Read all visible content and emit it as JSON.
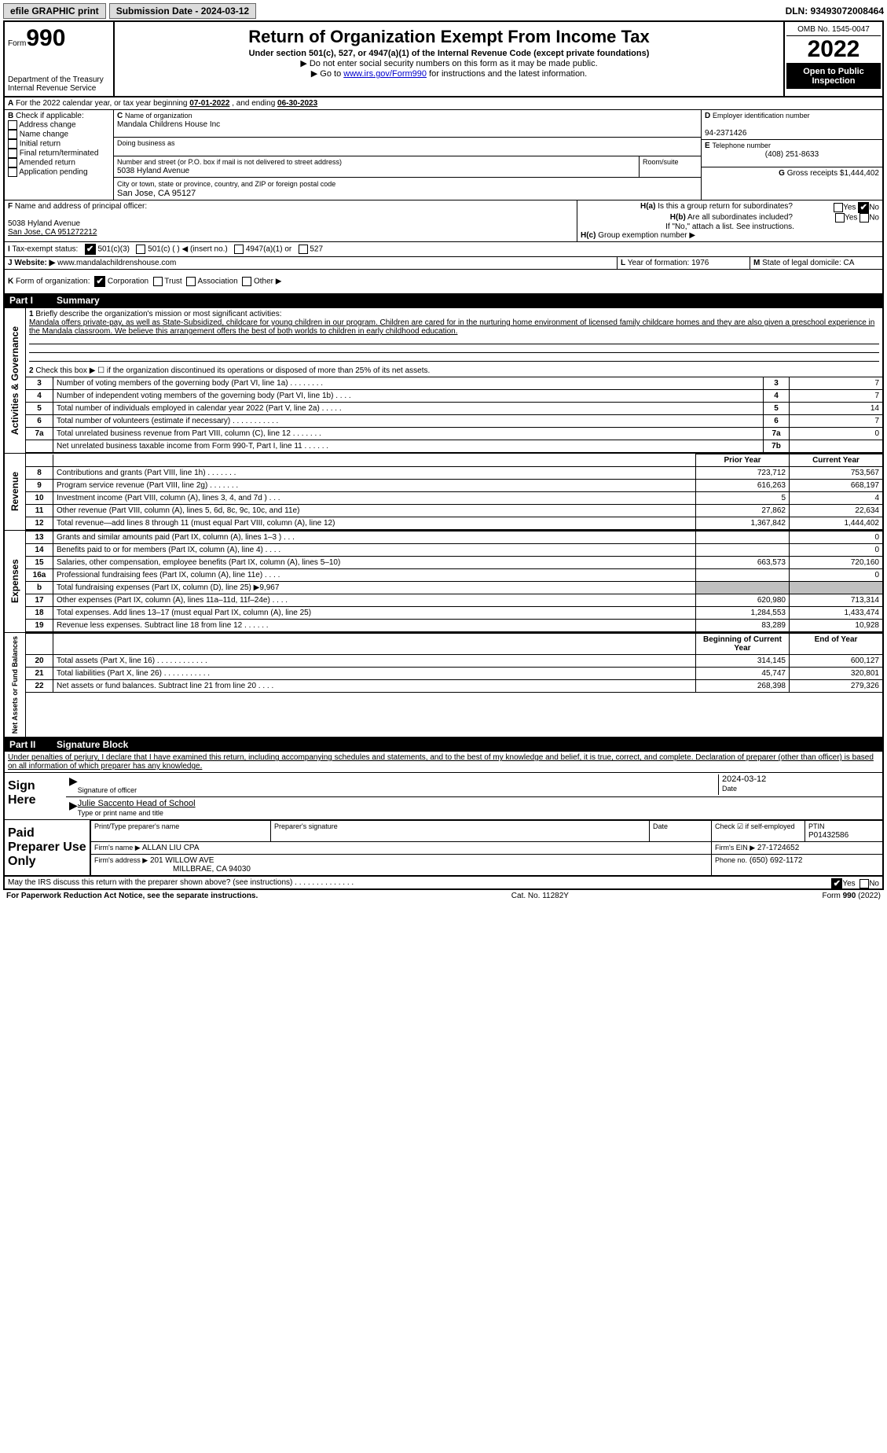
{
  "top": {
    "efile_label": "efile GRAPHIC print",
    "submission_label": "Submission Date - 2024-03-12",
    "dln_label": "DLN: 93493072008464"
  },
  "header": {
    "form_word": "Form",
    "form_num": "990",
    "dept": "Department of the Treasury\nInternal Revenue Service",
    "title": "Return of Organization Exempt From Income Tax",
    "subtitle": "Under section 501(c), 527, or 4947(a)(1) of the Internal Revenue Code (except private foundations)",
    "note1": "▶ Do not enter social security numbers on this form as it may be made public.",
    "note2_pre": "▶ Go to ",
    "note2_link": "www.irs.gov/Form990",
    "note2_post": " for instructions and the latest information.",
    "omb": "OMB No. 1545-0047",
    "year": "2022",
    "openpub": "Open to Public Inspection"
  },
  "A": {
    "text_pre": "For the 2022 calendar year, or tax year beginning ",
    "begin": "07-01-2022",
    "mid": " , and ending ",
    "end": "06-30-2023"
  },
  "B": {
    "label": "Check if applicable:",
    "items": [
      "Address change",
      "Name change",
      "Initial return",
      "Final return/terminated",
      "Amended return",
      "Application pending"
    ]
  },
  "C": {
    "name_label": "Name of organization",
    "name": "Mandala Childrens House Inc",
    "dba_label": "Doing business as",
    "street_label": "Number and street (or P.O. box if mail is not delivered to street address)",
    "room_label": "Room/suite",
    "street": "5038 Hyland Avenue",
    "city_label": "City or town, state or province, country, and ZIP or foreign postal code",
    "city": "San Jose, CA  95127"
  },
  "D": {
    "label": "Employer identification number",
    "value": "94-2371426"
  },
  "E": {
    "label": "Telephone number",
    "value": "(408) 251-8633"
  },
  "G": {
    "label": "Gross receipts $",
    "value": "1,444,402"
  },
  "F": {
    "label": "Name and address of principal officer:",
    "line1": "5038 Hyland Avenue",
    "line2": "San Jose, CA  951272212"
  },
  "H": {
    "a": "Is this a group return for subordinates?",
    "b": "Are all subordinates included?",
    "b_note": "If \"No,\" attach a list. See instructions.",
    "c": "Group exemption number ▶",
    "yes": "Yes",
    "no": "No"
  },
  "I": {
    "label": "Tax-exempt status:",
    "a": "501(c)(3)",
    "b": "501(c) (   ) ◀ (insert no.)",
    "c": "4947(a)(1) or",
    "d": "527"
  },
  "J": {
    "label": "Website: ▶",
    "value": "www.mandalachildrenshouse.com"
  },
  "K": {
    "label": "Form of organization:",
    "opts": [
      "Corporation",
      "Trust",
      "Association",
      "Other ▶"
    ]
  },
  "L": {
    "label": "Year of formation:",
    "value": "1976"
  },
  "M": {
    "label": "State of legal domicile:",
    "value": "CA"
  },
  "part1": {
    "title": "Summary",
    "q1": "Briefly describe the organization's mission or most significant activities:",
    "mission": "Mandala offers private-pay, as well as State-Subsidized, childcare for young children in our program. Children are cared for in the nurturing home environment of licensed family childcare homes and they are also given a preschool experience in the Mandala classroom. We believe this arrangement offers the best of both worlds to children in early childhood education.",
    "q2": "Check this box ▶ ☐  if the organization discontinued its operations or disposed of more than 25% of its net assets.",
    "rows_gov": [
      {
        "n": "3",
        "t": "Number of voting members of the governing body (Part VI, line 1a)   .    .    .    .    .    .    .    .",
        "box": "3",
        "v": "7"
      },
      {
        "n": "4",
        "t": "Number of independent voting members of the governing body (Part VI, line 1b)    .    .    .    .",
        "box": "4",
        "v": "7"
      },
      {
        "n": "5",
        "t": "Total number of individuals employed in calendar year 2022 (Part V, line 2a)   .    .    .    .    .",
        "box": "5",
        "v": "14"
      },
      {
        "n": "6",
        "t": "Total number of volunteers (estimate if necessary)    .    .    .    .    .    .    .    .    .    .    .",
        "box": "6",
        "v": "7"
      },
      {
        "n": "7a",
        "t": "Total unrelated business revenue from Part VIII, column (C), line 12    .    .    .    .    .    .    .",
        "box": "7a",
        "v": "0"
      },
      {
        "n": "",
        "t": "Net unrelated business taxable income from Form 990-T, Part I, line 11    .    .    .    .    .    .",
        "box": "7b",
        "v": ""
      }
    ],
    "hdr_prior": "Prior Year",
    "hdr_curr": "Current Year",
    "rows_rev": [
      {
        "n": "8",
        "t": "Contributions and grants (Part VIII, line 1h)   .    .    .    .    .    .    .",
        "p": "723,712",
        "c": "753,567"
      },
      {
        "n": "9",
        "t": "Program service revenue (Part VIII, line 2g)   .    .    .    .    .    .    .",
        "p": "616,263",
        "c": "668,197"
      },
      {
        "n": "10",
        "t": "Investment income (Part VIII, column (A), lines 3, 4, and 7d )   .    .    .",
        "p": "5",
        "c": "4"
      },
      {
        "n": "11",
        "t": "Other revenue (Part VIII, column (A), lines 5, 6d, 8c, 9c, 10c, and 11e)",
        "p": "27,862",
        "c": "22,634"
      },
      {
        "n": "12",
        "t": "Total revenue—add lines 8 through 11 (must equal Part VIII, column (A), line 12)",
        "p": "1,367,842",
        "c": "1,444,402"
      }
    ],
    "rows_exp": [
      {
        "n": "13",
        "t": "Grants and similar amounts paid (Part IX, column (A), lines 1–3 )   .    .    .",
        "p": "",
        "c": "0"
      },
      {
        "n": "14",
        "t": "Benefits paid to or for members (Part IX, column (A), line 4)   .    .    .    .",
        "p": "",
        "c": "0"
      },
      {
        "n": "15",
        "t": "Salaries, other compensation, employee benefits (Part IX, column (A), lines 5–10)",
        "p": "663,573",
        "c": "720,160"
      },
      {
        "n": "16a",
        "t": "Professional fundraising fees (Part IX, column (A), line 11e)   .    .    .    .",
        "p": "",
        "c": "0"
      },
      {
        "n": "b",
        "t": "Total fundraising expenses (Part IX, column (D), line 25) ▶9,967",
        "p": "shade",
        "c": "shade"
      },
      {
        "n": "17",
        "t": "Other expenses (Part IX, column (A), lines 11a–11d, 11f–24e)   .    .    .    .",
        "p": "620,980",
        "c": "713,314"
      },
      {
        "n": "18",
        "t": "Total expenses. Add lines 13–17 (must equal Part IX, column (A), line 25)",
        "p": "1,284,553",
        "c": "1,433,474"
      },
      {
        "n": "19",
        "t": "Revenue less expenses. Subtract line 18 from line 12   .    .    .    .    .    .",
        "p": "83,289",
        "c": "10,928"
      }
    ],
    "hdr_boy": "Beginning of Current Year",
    "hdr_eoy": "End of Year",
    "rows_net": [
      {
        "n": "20",
        "t": "Total assets (Part X, line 16)   .    .    .    .    .    .    .    .    .    .    .    .",
        "p": "314,145",
        "c": "600,127"
      },
      {
        "n": "21",
        "t": "Total liabilities (Part X, line 26)   .    .    .    .    .    .    .    .    .    .    .",
        "p": "45,747",
        "c": "320,801"
      },
      {
        "n": "22",
        "t": "Net assets or fund balances. Subtract line 21 from line 20    .    .    .    .",
        "p": "268,398",
        "c": "279,326"
      }
    ],
    "vlabels": {
      "gov": "Activities & Governance",
      "rev": "Revenue",
      "exp": "Expenses",
      "net": "Net Assets or Fund Balances"
    }
  },
  "part2": {
    "title": "Signature Block",
    "decl": "Under penalties of perjury, I declare that I have examined this return, including accompanying schedules and statements, and to the best of my knowledge and belief, it is true, correct, and complete. Declaration of preparer (other than officer) is based on all information of which preparer has any knowledge.",
    "sign_here": "Sign Here",
    "sig_officer": "Signature of officer",
    "sig_date": "Date",
    "date_val": "2024-03-12",
    "typed_name": "Julie Saccento  Head of School",
    "typed_label": "Type or print name and title",
    "paid": "Paid Preparer Use Only",
    "prep_name_label": "Print/Type preparer's name",
    "prep_sig_label": "Preparer's signature",
    "prep_date_label": "Date",
    "check_if": "Check ☑ if self-employed",
    "ptin_label": "PTIN",
    "ptin": "P01432586",
    "firm_name_label": "Firm's name   ▶",
    "firm_name": "ALLAN LIU CPA",
    "firm_ein_label": "Firm's EIN ▶",
    "firm_ein": "27-1724652",
    "firm_addr_label": "Firm's address ▶",
    "firm_addr1": "201 WILLOW AVE",
    "firm_addr2": "MILLBRAE, CA  94030",
    "phone_label": "Phone no.",
    "phone": "(650) 692-1172",
    "may_irs": "May the IRS discuss this return with the preparer shown above? (see instructions)    .    .    .    .    .    .    .    .    .    .    .    .    .    ."
  },
  "footer": {
    "left": "For Paperwork Reduction Act Notice, see the separate instructions.",
    "mid": "Cat. No. 11282Y",
    "right": "Form 990 (2022)"
  }
}
